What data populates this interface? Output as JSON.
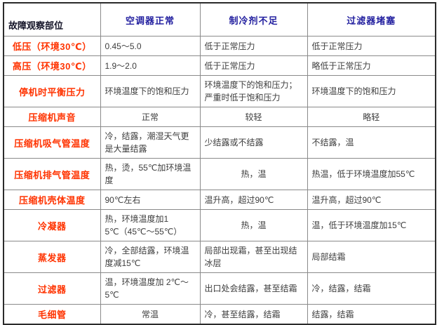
{
  "colors": {
    "header_blue": "#221f9f",
    "label_red": "#ff3300",
    "body_text": "#3d3d3d",
    "grid": "#8a8a8a",
    "outer_border": "#2b2b2b"
  },
  "table": {
    "corner_header": "故障观察部位",
    "headers": [
      "空调器正常",
      "制冷剂不足",
      "过滤器堵塞"
    ],
    "rows": [
      {
        "label": "低压（环境30℃）",
        "cells": [
          {
            "text": "0.45～5.0",
            "center": false
          },
          {
            "text": "低于正常压力",
            "center": false
          },
          {
            "text": "低于正常压力",
            "center": false
          }
        ]
      },
      {
        "label": "高压（环境30℃）",
        "cells": [
          {
            "text": "1.9～2.0",
            "center": false
          },
          {
            "text": "低于正常压力",
            "center": false
          },
          {
            "text": "略低于正常压力",
            "center": false
          }
        ]
      },
      {
        "label": "停机时平衡压力",
        "cells": [
          {
            "text": "环境温度下的饱和压力",
            "center": false
          },
          {
            "text": "环境温度下的饱和压力；严重时低于饱和压力",
            "center": false
          },
          {
            "text": "环境温度下的饱和压力",
            "center": false
          }
        ]
      },
      {
        "label": "压缩机声音",
        "cells": [
          {
            "text": "正常",
            "center": true
          },
          {
            "text": "较轻",
            "center": true
          },
          {
            "text": "略轻",
            "center": true
          }
        ]
      },
      {
        "label": "压缩机吸气管温度",
        "cells": [
          {
            "text": "冷，结露，潮湿天气更是大量结露",
            "center": false
          },
          {
            "text": "少结露或不结露",
            "center": false
          },
          {
            "text": "不结露，温",
            "center": false
          }
        ]
      },
      {
        "label": "压缩机排气管温度",
        "cells": [
          {
            "text": "热，烫，55℃加环境温度",
            "center": false
          },
          {
            "text": "热，温",
            "center": true
          },
          {
            "text": "热温，低于环境温度加55℃",
            "center": false
          }
        ]
      },
      {
        "label": "压缩机壳体温度",
        "cells": [
          {
            "text": "90℃左右",
            "center": false
          },
          {
            "text": "温升高，超过90℃",
            "center": false
          },
          {
            "text": "温升高，超过90℃",
            "center": false
          }
        ]
      },
      {
        "label": "冷凝器",
        "cells": [
          {
            "text": "热，环境温度加15℃（45℃～55℃）",
            "center": false
          },
          {
            "text": "热，温",
            "center": true
          },
          {
            "text": "温，低于环境温度加15℃",
            "center": false
          }
        ]
      },
      {
        "label": "蒸发器",
        "cells": [
          {
            "text": "冷，全部结露，环境温度减15℃",
            "center": false
          },
          {
            "text": "局部出现霜，甚至出现结冰层",
            "center": false
          },
          {
            "text": "局部结霜",
            "center": false
          }
        ]
      },
      {
        "label": "过滤器",
        "cells": [
          {
            "text": "温，环境温度加 2℃～5℃",
            "center": false
          },
          {
            "text": "出口处会结露，甚至结霜",
            "center": false
          },
          {
            "text": "冷，结露，结霜",
            "center": false
          }
        ]
      },
      {
        "label": "毛细管",
        "cells": [
          {
            "text": "常温",
            "center": true
          },
          {
            "text": "冷，甚至结露，结霜",
            "center": false
          },
          {
            "text": "结露，结霜",
            "center": false
          }
        ]
      }
    ]
  }
}
